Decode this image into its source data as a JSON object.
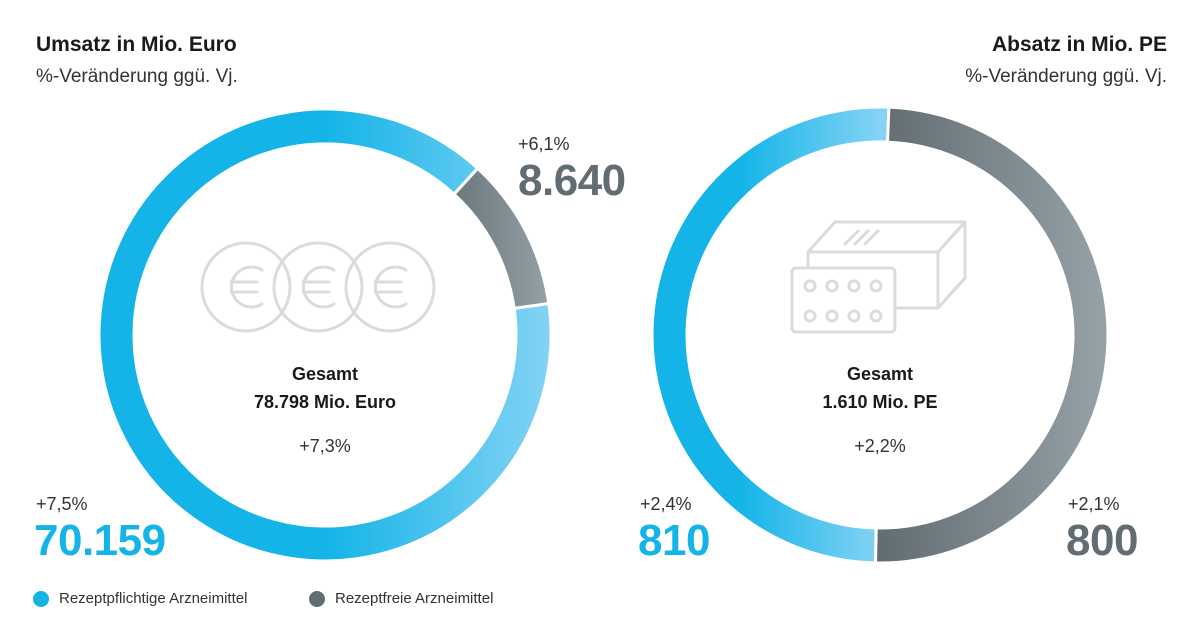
{
  "chart_data": [
    {
      "type": "pie",
      "title": "Umsatz in Mio. Euro",
      "subtitle": "%-Veränderung ggü. Vj.",
      "center": {
        "label": "Gesamt",
        "total": "78.798 Mio. Euro",
        "change": "+7,3%"
      },
      "series": [
        {
          "name": "Rezeptpflichtige Arzneimittel",
          "value": 70159,
          "value_label": "70.159",
          "change": "+7,5%",
          "color": "#14b4e8"
        },
        {
          "name": "Rezeptfreie Arzneimittel",
          "value": 8640,
          "value_label": "8.640",
          "change": "+6,1%",
          "color": "#626d73"
        }
      ]
    },
    {
      "type": "pie",
      "title": "Absatz in Mio. PE",
      "subtitle": "%-Veränderung ggü. Vj.",
      "center": {
        "label": "Gesamt",
        "total": "1.610 Mio. PE",
        "change": "+2,2%"
      },
      "series": [
        {
          "name": "Rezeptpflichtige Arzneimittel",
          "value": 810,
          "value_label": "810",
          "change": "+2,4%",
          "color": "#14b4e8"
        },
        {
          "name": "Rezeptfreie Arzneimittel",
          "value": 800,
          "value_label": "800",
          "change": "+2,1%",
          "color": "#626d73"
        }
      ]
    }
  ],
  "legend": [
    {
      "label": "Rezeptpflichtige Arzneimittel",
      "color": "#14b4e8"
    },
    {
      "label": "Rezeptfreie Arzneimittel",
      "color": "#626d73"
    }
  ],
  "icons": {
    "left": "euro-coins-icon",
    "right": "medicine-blister-pack-icon"
  }
}
